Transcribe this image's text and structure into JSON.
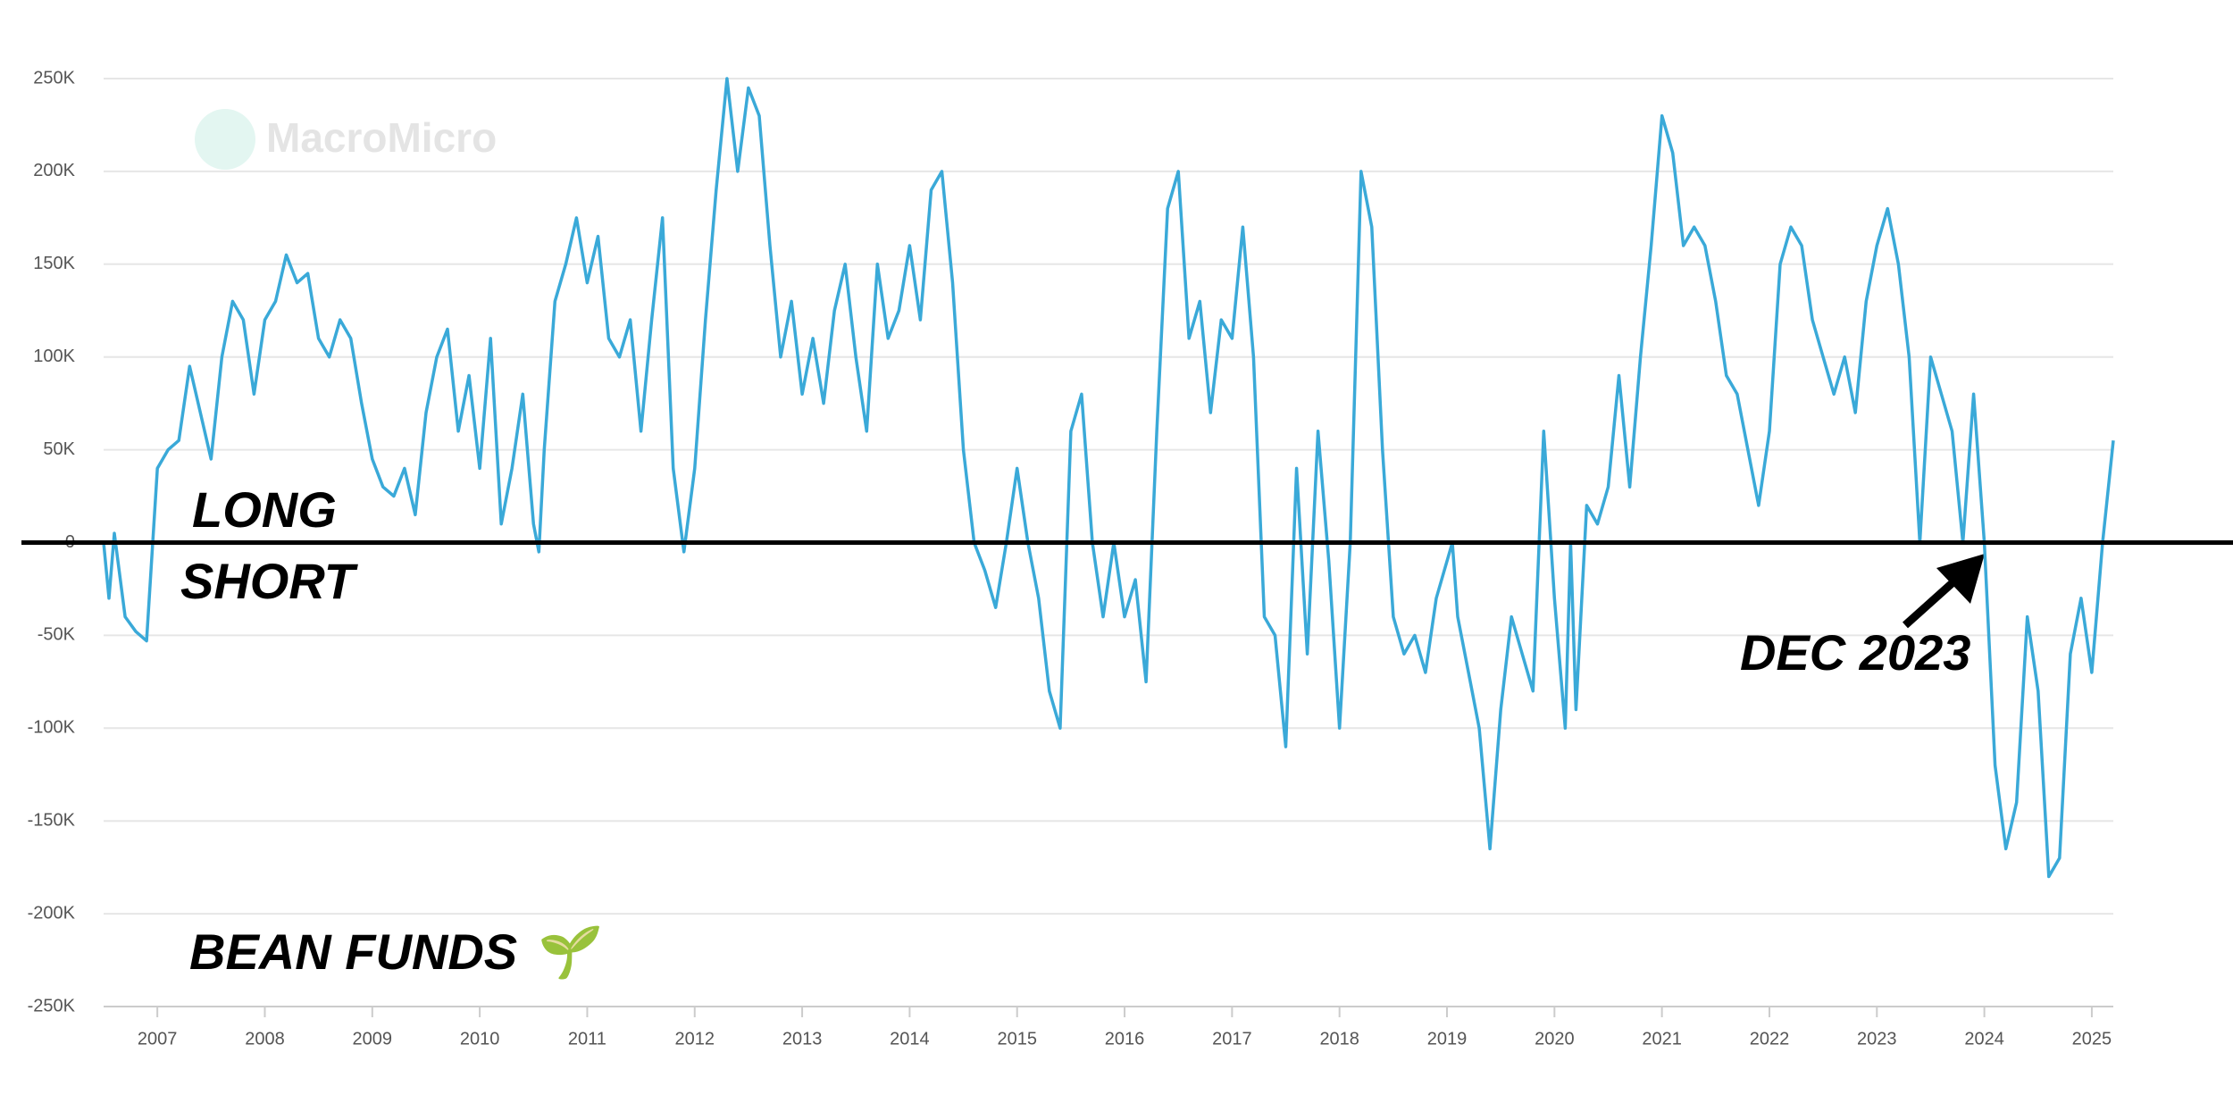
{
  "chart_data": {
    "type": "line",
    "watermark": "MacroMicro",
    "annotations": [
      "LONG",
      "SHORT",
      "DEC 2023",
      "BEAN FUNDS 🌱"
    ],
    "hline": 0,
    "x": [
      2006.5,
      2006.55,
      2006.6,
      2006.7,
      2006.8,
      2006.9,
      2007.0,
      2007.1,
      2007.2,
      2007.3,
      2007.4,
      2007.5,
      2007.6,
      2007.7,
      2007.8,
      2007.9,
      2008.0,
      2008.1,
      2008.2,
      2008.3,
      2008.4,
      2008.5,
      2008.6,
      2008.7,
      2008.8,
      2008.9,
      2009.0,
      2009.1,
      2009.2,
      2009.3,
      2009.4,
      2009.5,
      2009.6,
      2009.7,
      2009.8,
      2009.9,
      2010.0,
      2010.1,
      2010.15,
      2010.2,
      2010.3,
      2010.4,
      2010.5,
      2010.55,
      2010.6,
      2010.7,
      2010.8,
      2010.9,
      2011.0,
      2011.1,
      2011.2,
      2011.3,
      2011.4,
      2011.5,
      2011.6,
      2011.7,
      2011.8,
      2011.9,
      2012.0,
      2012.1,
      2012.2,
      2012.3,
      2012.4,
      2012.5,
      2012.6,
      2012.7,
      2012.8,
      2012.9,
      2013.0,
      2013.1,
      2013.2,
      2013.3,
      2013.4,
      2013.5,
      2013.6,
      2013.7,
      2013.8,
      2013.9,
      2014.0,
      2014.1,
      2014.2,
      2014.3,
      2014.4,
      2014.5,
      2014.6,
      2014.7,
      2014.8,
      2014.9,
      2015.0,
      2015.1,
      2015.2,
      2015.3,
      2015.4,
      2015.5,
      2015.6,
      2015.7,
      2015.8,
      2015.9,
      2016.0,
      2016.1,
      2016.2,
      2016.3,
      2016.4,
      2016.5,
      2016.6,
      2016.7,
      2016.8,
      2016.9,
      2017.0,
      2017.1,
      2017.2,
      2017.3,
      2017.4,
      2017.5,
      2017.6,
      2017.7,
      2017.8,
      2017.9,
      2018.0,
      2018.1,
      2018.2,
      2018.3,
      2018.4,
      2018.5,
      2018.6,
      2018.7,
      2018.8,
      2018.9,
      2019.0,
      2019.05,
      2019.1,
      2019.2,
      2019.3,
      2019.4,
      2019.5,
      2019.6,
      2019.7,
      2019.8,
      2019.9,
      2020.0,
      2020.1,
      2020.15,
      2020.2,
      2020.3,
      2020.4,
      2020.5,
      2020.6,
      2020.7,
      2020.8,
      2020.9,
      2021.0,
      2021.1,
      2021.2,
      2021.3,
      2021.4,
      2021.5,
      2021.6,
      2021.7,
      2021.8,
      2021.9,
      2022.0,
      2022.1,
      2022.2,
      2022.3,
      2022.4,
      2022.5,
      2022.6,
      2022.7,
      2022.8,
      2022.9,
      2023.0,
      2023.1,
      2023.2,
      2023.3,
      2023.4,
      2023.5,
      2023.6,
      2023.7,
      2023.8,
      2023.9,
      2024.0,
      2024.1,
      2024.2,
      2024.3,
      2024.4,
      2024.5,
      2024.6,
      2024.7,
      2024.8,
      2024.9,
      2025.0,
      2025.1,
      2025.2
    ],
    "series": [
      {
        "color": "#3aa9d8",
        "values": [
          0,
          -30000,
          5000,
          -40000,
          -48000,
          -53000,
          40000,
          50000,
          55000,
          95000,
          70000,
          45000,
          100000,
          130000,
          120000,
          80000,
          120000,
          130000,
          155000,
          140000,
          145000,
          110000,
          100000,
          120000,
          110000,
          75000,
          45000,
          30000,
          25000,
          40000,
          15000,
          70000,
          100000,
          115000,
          60000,
          90000,
          40000,
          110000,
          60000,
          10000,
          40000,
          80000,
          10000,
          -5000,
          50000,
          130000,
          150000,
          175000,
          140000,
          165000,
          110000,
          100000,
          120000,
          60000,
          120000,
          175000,
          40000,
          -5000,
          40000,
          120000,
          190000,
          250000,
          200000,
          245000,
          230000,
          160000,
          100000,
          130000,
          80000,
          110000,
          75000,
          125000,
          150000,
          100000,
          60000,
          150000,
          110000,
          125000,
          160000,
          120000,
          190000,
          200000,
          140000,
          50000,
          0,
          -15000,
          -35000,
          0,
          40000,
          0,
          -30000,
          -80000,
          -100000,
          60000,
          80000,
          0,
          -40000,
          0,
          -40000,
          -20000,
          -75000,
          60000,
          180000,
          200000,
          110000,
          130000,
          70000,
          120000,
          110000,
          170000,
          100000,
          -40000,
          -50000,
          -110000,
          40000,
          -60000,
          60000,
          -10000,
          -100000,
          0,
          200000,
          170000,
          50000,
          -40000,
          -60000,
          -50000,
          -70000,
          -30000,
          -10000,
          0,
          -40000,
          -70000,
          -100000,
          -165000,
          -90000,
          -40000,
          -60000,
          -80000,
          60000,
          -30000,
          -100000,
          0,
          -90000,
          20000,
          10000,
          30000,
          90000,
          30000,
          100000,
          160000,
          230000,
          210000,
          160000,
          170000,
          160000,
          130000,
          90000,
          80000,
          50000,
          20000,
          60000,
          150000,
          170000,
          160000,
          120000,
          100000,
          80000,
          100000,
          70000,
          130000,
          160000,
          180000,
          150000,
          100000,
          0,
          100000,
          80000,
          60000,
          0,
          80000,
          0,
          -120000,
          -165000,
          -140000,
          -40000,
          -80000,
          -180000,
          -170000,
          -60000,
          -30000,
          -70000,
          0,
          55000
        ]
      }
    ],
    "xlim": [
      2006.5,
      2025.2
    ],
    "xticks": [
      2007,
      2008,
      2009,
      2010,
      2011,
      2012,
      2013,
      2014,
      2015,
      2016,
      2017,
      2018,
      2019,
      2020,
      2021,
      2022,
      2023,
      2024,
      2025
    ],
    "ylim": [
      -250000,
      250000
    ],
    "yticks": [
      {
        "value": -250000,
        "label": "-250K"
      },
      {
        "value": -200000,
        "label": "-200K"
      },
      {
        "value": -150000,
        "label": "-150K"
      },
      {
        "value": -100000,
        "label": "-100K"
      },
      {
        "value": -50000,
        "label": "-50K"
      },
      {
        "value": 0,
        "label": "0"
      },
      {
        "value": 50000,
        "label": "50K"
      },
      {
        "value": 100000,
        "label": "100K"
      },
      {
        "value": 150000,
        "label": "150K"
      },
      {
        "value": 200000,
        "label": "200K"
      },
      {
        "value": 250000,
        "label": "250K"
      }
    ],
    "grid": true
  }
}
